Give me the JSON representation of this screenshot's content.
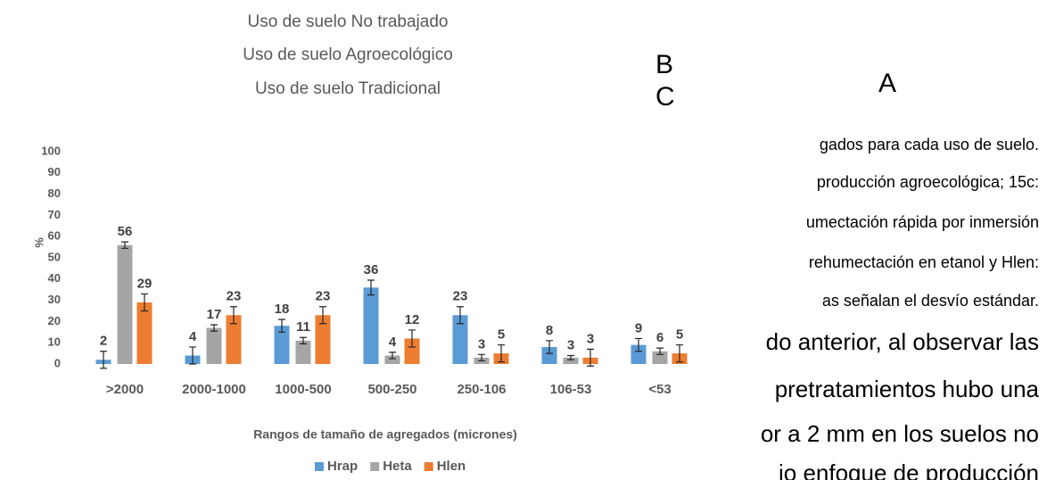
{
  "chart_data": {
    "type": "bar",
    "title_lines": [
      "Uso de suelo No trabajado",
      "Uso de suelo Agroecológico",
      "Uso de suelo Tradicional"
    ],
    "ylabel": "%",
    "xlabel": "Rangos de tamaño de agregados (micrones)",
    "categories": [
      ">2000",
      "2000-1000",
      "1000-500",
      "500-250",
      "250-106",
      "106-53",
      "<53"
    ],
    "series": [
      {
        "name": "Hrap",
        "color": "#5b9bd5",
        "values": [
          2,
          4,
          18,
          36,
          23,
          8,
          9
        ],
        "errors": [
          4,
          4,
          3,
          3.5,
          4,
          3,
          3
        ]
      },
      {
        "name": "Heta",
        "color": "#a5a5a5",
        "values": [
          56,
          17,
          11,
          4,
          3,
          3,
          6
        ],
        "errors": [
          1.5,
          1.5,
          1.5,
          1.5,
          1.5,
          1,
          1.5
        ]
      },
      {
        "name": "Hlen",
        "color": "#ed7d31",
        "values": [
          29,
          23,
          23,
          12,
          5,
          3,
          5
        ],
        "errors": [
          4,
          4,
          4,
          4,
          4,
          4,
          4
        ]
      }
    ],
    "ylim": [
      0,
      100
    ],
    "yticks": [
      0,
      10,
      20,
      30,
      40,
      50,
      60,
      70,
      80,
      90,
      100
    ],
    "grid": false,
    "legend": "bottom"
  },
  "document": {
    "letters": [
      "B",
      "A",
      "C"
    ],
    "lines": [
      "gados para cada uso de suelo.",
      "producción agroecológica; 15c:",
      "umectación rápida por inmersión",
      "rehumectación en etanol y Hlen:",
      "as señalan el desvío estándar."
    ],
    "large_lines": [
      "do anterior, al observar las",
      "pretratamientos hubo una",
      "or a 2 mm en los suelos no",
      "io enfoque de producción"
    ]
  }
}
